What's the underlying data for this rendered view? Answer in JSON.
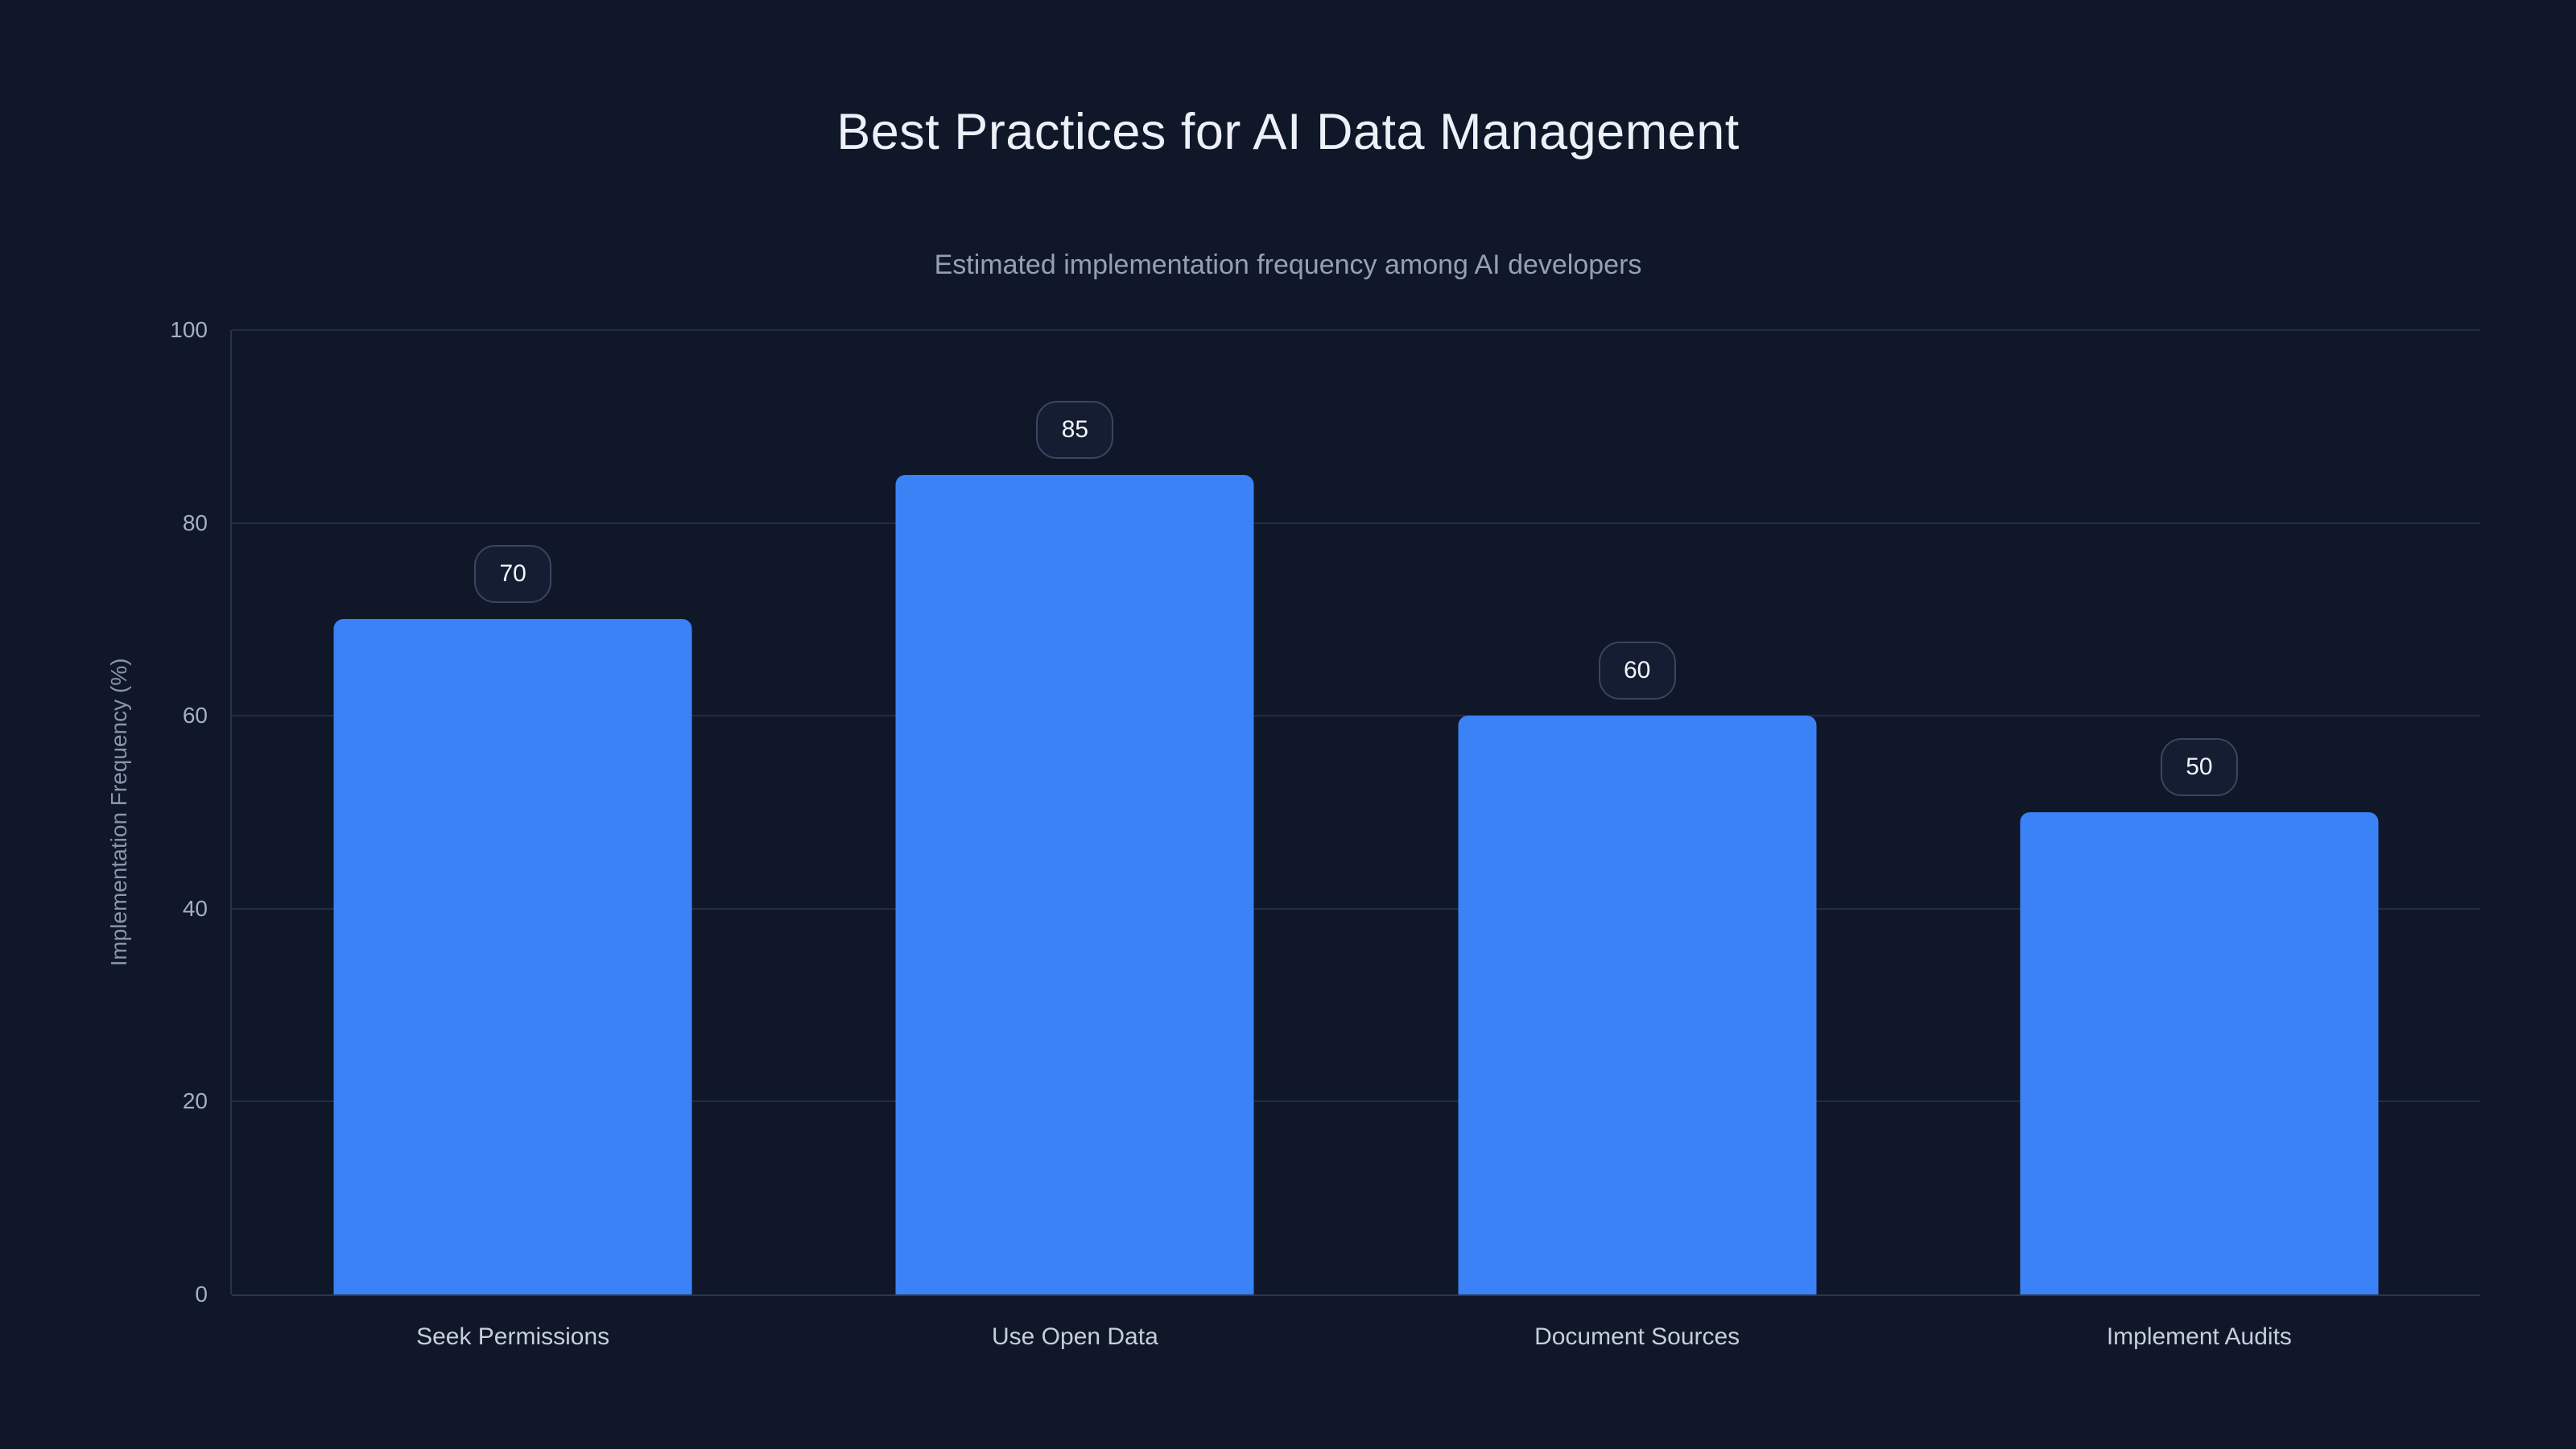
{
  "page": {
    "background_color": "#0f1729"
  },
  "header": {
    "title": "Best Practices for AI Data Management",
    "subtitle": "Estimated implementation frequency among AI developers"
  },
  "chart_data": {
    "type": "bar",
    "categories": [
      "Seek Permissions",
      "Use Open Data",
      "Document Sources",
      "Implement Audits"
    ],
    "values": [
      70,
      85,
      60,
      50
    ],
    "value_labels": [
      "70",
      "85",
      "60",
      "50"
    ],
    "title": "Best Practices for AI Data Management",
    "subtitle": "Estimated implementation frequency among AI developers",
    "xlabel": "",
    "ylabel": "Implementation Frequency (%)",
    "ylim": [
      0,
      100
    ],
    "yticks": [
      0,
      20,
      40,
      60,
      80,
      100
    ],
    "ytick_labels": [
      "0",
      "20",
      "40",
      "60",
      "80",
      "100"
    ],
    "grid": "horizontal",
    "legend": "none",
    "bar_color": "#3b82f6",
    "gridline_color": "#222d44",
    "axis_line_color": "#2b374e",
    "tick_label_color": "#a3b1c6",
    "category_label_color": "#c5cedb",
    "badge_border_color": "#3a4660",
    "badge_text_color": "#f2f5fa"
  }
}
